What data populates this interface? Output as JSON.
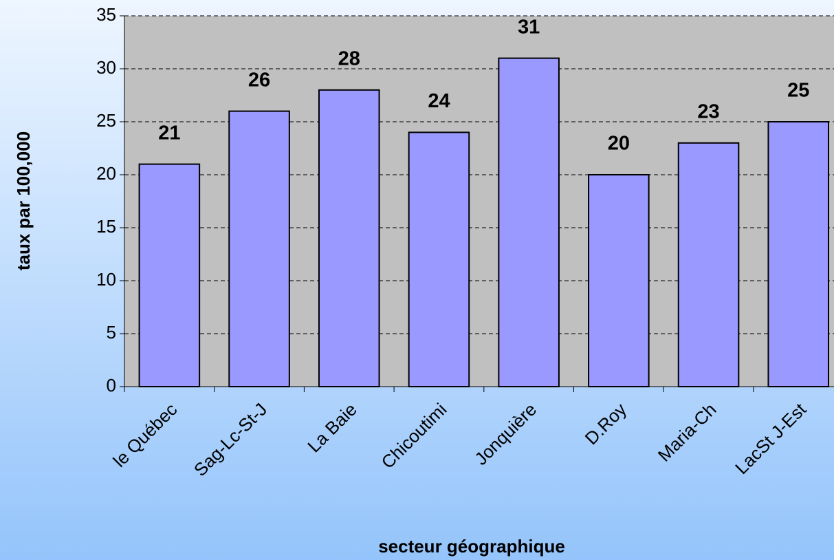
{
  "chart_data": {
    "type": "bar",
    "x_label": "secteur géographique",
    "y_label": "taux par 100,000",
    "categories": [
      "le Québec",
      "Sag-Lc-St-J",
      "La Baie",
      "Chicoutimi",
      "Jonquière",
      "D.Roy",
      "Maria-Ch",
      "LacSt J-Est"
    ],
    "values": [
      21,
      26,
      28,
      24,
      31,
      20,
      23,
      25
    ],
    "color": "#9999ff",
    "plot_background": "#c0c0c0",
    "ylim": [
      0,
      35
    ],
    "yticks": [
      0,
      5,
      10,
      15,
      20,
      25,
      30,
      35
    ],
    "grid": true
  }
}
